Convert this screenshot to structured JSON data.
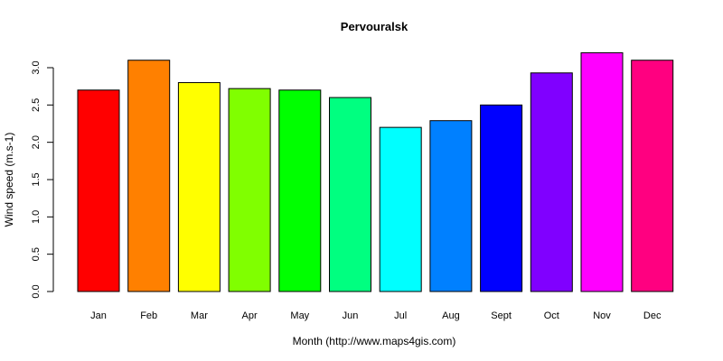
{
  "chart_data": {
    "type": "bar",
    "title": "Pervouralsk",
    "xlabel": "Month (http://www.maps4gis.com)",
    "ylabel": "Wind speed (m.s-1)",
    "categories": [
      "Jan",
      "Feb",
      "Mar",
      "Apr",
      "May",
      "Jun",
      "Jul",
      "Aug",
      "Sept",
      "Oct",
      "Nov",
      "Dec"
    ],
    "values": [
      2.7,
      3.1,
      2.8,
      2.72,
      2.7,
      2.6,
      2.2,
      2.29,
      2.5,
      2.93,
      3.2,
      3.1
    ],
    "colors": [
      "#FF0000",
      "#FF8000",
      "#FFFF00",
      "#80FF00",
      "#00FF00",
      "#00FF80",
      "#00FFFF",
      "#0080FF",
      "#0000FF",
      "#8000FF",
      "#FF00FF",
      "#FF0080"
    ],
    "yticks": [
      "0.0",
      "0.5",
      "1.0",
      "1.5",
      "2.0",
      "2.5",
      "3.0"
    ],
    "ylim": [
      0,
      3.0
    ],
    "grid": false,
    "legend": null
  }
}
